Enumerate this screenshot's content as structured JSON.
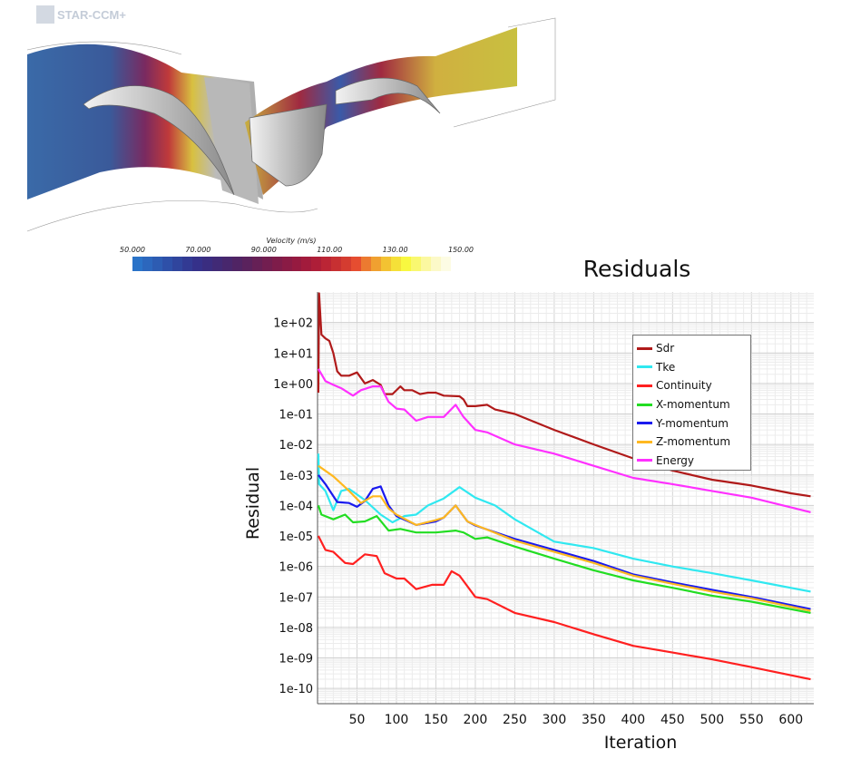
{
  "visualization": {
    "logo_text": "STAR-CCM+",
    "colorbar": {
      "title": "Velocity (m/s)",
      "labels": [
        "50.000",
        "70.000",
        "90.000",
        "110.00",
        "130.00",
        "150.00"
      ],
      "range": [
        50,
        150
      ],
      "colors": [
        "#2a73c8",
        "#2c67bd",
        "#2d5cb2",
        "#2e50a8",
        "#30459d",
        "#323a93",
        "#35318a",
        "#3a2d80",
        "#412a76",
        "#48276d",
        "#502464",
        "#5a225d",
        "#662056",
        "#721e50",
        "#7e1c4a",
        "#8a1b45",
        "#961a40",
        "#a21b3c",
        "#ae1e38",
        "#bb2535",
        "#c73032",
        "#d43c30",
        "#e64d30",
        "#ec7a30",
        "#f0a030",
        "#f3c232",
        "#f5e038",
        "#f8f840",
        "#f9f870",
        "#fbf8a0",
        "#fcf9c8",
        "#fdfce4",
        "#ffffff"
      ]
    }
  },
  "chart_data": {
    "type": "line",
    "title": "Residuals",
    "xlabel": "Iteration",
    "ylabel": "Residual",
    "xlim": [
      0,
      629
    ],
    "ylim": [
      3.162e-11,
      1000
    ],
    "yscale": "log",
    "grid": true,
    "legend_position": "top-right",
    "xticks": [
      50,
      100,
      150,
      200,
      250,
      300,
      350,
      400,
      450,
      500,
      550,
      600
    ],
    "yticks": [
      "1e+02",
      "1e+01",
      "1e+00",
      "1e-01",
      "1e-02",
      "1e-03",
      "1e-04",
      "1e-05",
      "1e-06",
      "1e-07",
      "1e-08",
      "1e-09",
      "1e-10"
    ],
    "series": [
      {
        "name": "Sdr",
        "color": "#b01a1a",
        "points": [
          [
            1,
            0.5
          ],
          [
            2,
            900
          ],
          [
            5,
            40
          ],
          [
            10,
            30
          ],
          [
            15,
            25
          ],
          [
            20,
            10
          ],
          [
            25,
            2.5
          ],
          [
            30,
            1.8
          ],
          [
            40,
            1.8
          ],
          [
            50,
            2.3
          ],
          [
            60,
            1.0
          ],
          [
            70,
            1.3
          ],
          [
            80,
            0.9
          ],
          [
            85,
            0.45
          ],
          [
            95,
            0.45
          ],
          [
            105,
            0.8
          ],
          [
            110,
            0.6
          ],
          [
            120,
            0.6
          ],
          [
            130,
            0.45
          ],
          [
            140,
            0.5
          ],
          [
            150,
            0.5
          ],
          [
            160,
            0.4
          ],
          [
            180,
            0.38
          ],
          [
            185,
            0.3
          ],
          [
            190,
            0.18
          ],
          [
            200,
            0.18
          ],
          [
            215,
            0.2
          ],
          [
            225,
            0.14
          ],
          [
            250,
            0.1
          ],
          [
            300,
            0.03
          ],
          [
            350,
            0.01
          ],
          [
            400,
            0.0035
          ],
          [
            450,
            0.0014
          ],
          [
            500,
            0.0007
          ],
          [
            550,
            0.00045
          ],
          [
            600,
            0.00025
          ],
          [
            625,
            0.0002
          ]
        ]
      },
      {
        "name": "Tke",
        "color": "#30e8f0",
        "points": [
          [
            1,
            0.005
          ],
          [
            2,
            0.0005
          ],
          [
            10,
            0.0003
          ],
          [
            20,
            7e-05
          ],
          [
            30,
            0.0003
          ],
          [
            40,
            0.00035
          ],
          [
            60,
            0.00015
          ],
          [
            80,
            5e-05
          ],
          [
            95,
            2.8e-05
          ],
          [
            110,
            4.5e-05
          ],
          [
            125,
            5e-05
          ],
          [
            140,
            0.0001
          ],
          [
            160,
            0.00017
          ],
          [
            180,
            0.0004
          ],
          [
            200,
            0.00018
          ],
          [
            225,
            0.0001
          ],
          [
            250,
            3.5e-05
          ],
          [
            300,
            6.5e-06
          ],
          [
            350,
            4e-06
          ],
          [
            400,
            1.8e-06
          ],
          [
            450,
            1e-06
          ],
          [
            500,
            6e-07
          ],
          [
            550,
            3.5e-07
          ],
          [
            625,
            1.5e-07
          ]
        ]
      },
      {
        "name": "Continuity",
        "color": "#ff2020",
        "points": [
          [
            1,
            1e-05
          ],
          [
            10,
            3.5e-06
          ],
          [
            20,
            3e-06
          ],
          [
            35,
            1.3e-06
          ],
          [
            45,
            1.2e-06
          ],
          [
            60,
            2.5e-06
          ],
          [
            75,
            2.2e-06
          ],
          [
            85,
            6e-07
          ],
          [
            100,
            4e-07
          ],
          [
            110,
            4e-07
          ],
          [
            125,
            1.8e-07
          ],
          [
            145,
            2.5e-07
          ],
          [
            160,
            2.5e-07
          ],
          [
            170,
            7e-07
          ],
          [
            180,
            5e-07
          ],
          [
            200,
            1e-07
          ],
          [
            215,
            8.5e-08
          ],
          [
            250,
            3e-08
          ],
          [
            300,
            1.5e-08
          ],
          [
            350,
            6e-09
          ],
          [
            400,
            2.5e-09
          ],
          [
            450,
            1.5e-09
          ],
          [
            500,
            9e-10
          ],
          [
            550,
            5e-10
          ],
          [
            625,
            2e-10
          ]
        ]
      },
      {
        "name": "X-momentum",
        "color": "#22dd22",
        "points": [
          [
            1,
            0.0001
          ],
          [
            5,
            5e-05
          ],
          [
            20,
            3.5e-05
          ],
          [
            35,
            5e-05
          ],
          [
            45,
            2.8e-05
          ],
          [
            60,
            3e-05
          ],
          [
            75,
            4.5e-05
          ],
          [
            90,
            1.5e-05
          ],
          [
            105,
            1.7e-05
          ],
          [
            125,
            1.3e-05
          ],
          [
            150,
            1.3e-05
          ],
          [
            175,
            1.5e-05
          ],
          [
            185,
            1.3e-05
          ],
          [
            200,
            8e-06
          ],
          [
            215,
            9e-06
          ],
          [
            250,
            4.5e-06
          ],
          [
            300,
            1.8e-06
          ],
          [
            350,
            7.5e-07
          ],
          [
            400,
            3.5e-07
          ],
          [
            450,
            2e-07
          ],
          [
            500,
            1.1e-07
          ],
          [
            550,
            7e-08
          ],
          [
            625,
            3e-08
          ]
        ]
      },
      {
        "name": "Y-momentum",
        "color": "#1a1aee",
        "points": [
          [
            1,
            0.001
          ],
          [
            10,
            0.0005
          ],
          [
            25,
            0.00013
          ],
          [
            40,
            0.00012
          ],
          [
            50,
            9e-05
          ],
          [
            60,
            0.00014
          ],
          [
            70,
            0.00035
          ],
          [
            80,
            0.00042
          ],
          [
            90,
            0.0001
          ],
          [
            100,
            4.5e-05
          ],
          [
            125,
            2.3e-05
          ],
          [
            150,
            3e-05
          ],
          [
            160,
            4e-05
          ],
          [
            175,
            0.0001
          ],
          [
            190,
            3e-05
          ],
          [
            200,
            2.2e-05
          ],
          [
            250,
            8e-06
          ],
          [
            300,
            3.5e-06
          ],
          [
            350,
            1.5e-06
          ],
          [
            400,
            5.5e-07
          ],
          [
            450,
            3e-07
          ],
          [
            500,
            1.7e-07
          ],
          [
            550,
            1e-07
          ],
          [
            625,
            4e-08
          ]
        ]
      },
      {
        "name": "Z-momentum",
        "color": "#ffb820",
        "points": [
          [
            1,
            0.002
          ],
          [
            20,
            0.0009
          ],
          [
            40,
            0.0003
          ],
          [
            55,
            0.00012
          ],
          [
            70,
            0.0002
          ],
          [
            80,
            0.0002
          ],
          [
            90,
            8e-05
          ],
          [
            100,
            5e-05
          ],
          [
            125,
            2.3e-05
          ],
          [
            150,
            3.3e-05
          ],
          [
            160,
            4e-05
          ],
          [
            175,
            0.0001
          ],
          [
            190,
            3e-05
          ],
          [
            200,
            2.3e-05
          ],
          [
            250,
            7e-06
          ],
          [
            300,
            3e-06
          ],
          [
            350,
            1.3e-06
          ],
          [
            400,
            5e-07
          ],
          [
            450,
            2.7e-07
          ],
          [
            500,
            1.5e-07
          ],
          [
            550,
            9e-08
          ],
          [
            625,
            3.5e-08
          ]
        ]
      },
      {
        "name": "Energy",
        "color": "#ff30ff",
        "points": [
          [
            1,
            3
          ],
          [
            10,
            1.2
          ],
          [
            20,
            0.9
          ],
          [
            30,
            0.7
          ],
          [
            45,
            0.4
          ],
          [
            55,
            0.6
          ],
          [
            70,
            0.8
          ],
          [
            80,
            0.8
          ],
          [
            90,
            0.25
          ],
          [
            100,
            0.15
          ],
          [
            110,
            0.14
          ],
          [
            125,
            0.06
          ],
          [
            140,
            0.08
          ],
          [
            160,
            0.08
          ],
          [
            175,
            0.2
          ],
          [
            185,
            0.08
          ],
          [
            200,
            0.03
          ],
          [
            215,
            0.025
          ],
          [
            250,
            0.01
          ],
          [
            300,
            0.005
          ],
          [
            350,
            0.002
          ],
          [
            400,
            0.0008
          ],
          [
            450,
            0.0005
          ],
          [
            500,
            0.0003
          ],
          [
            550,
            0.00018
          ],
          [
            625,
            6e-05
          ]
        ]
      }
    ]
  }
}
